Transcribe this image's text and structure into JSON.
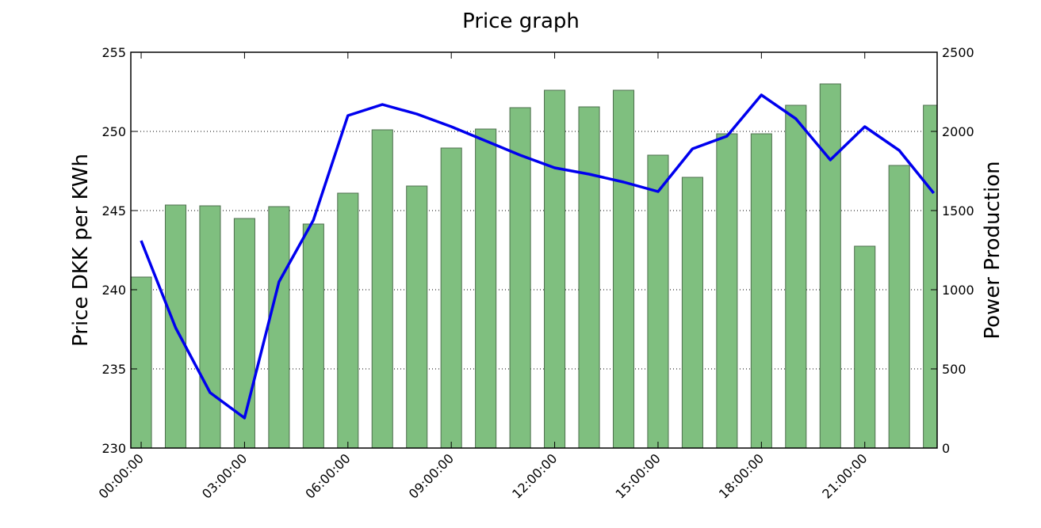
{
  "chart_data": {
    "type": "bar",
    "title": "Price graph",
    "ylabel": "Price DKK per KWh",
    "y2label": "Power Production",
    "ylim": [
      230,
      255
    ],
    "y2lim": [
      0,
      2500
    ],
    "yticks": [
      "230",
      "235",
      "240",
      "245",
      "250",
      "255"
    ],
    "y2ticks": [
      "0",
      "500",
      "1000",
      "1500",
      "2000",
      "2500"
    ],
    "xtick_labels": [
      "00:00:00",
      "03:00:00",
      "06:00:00",
      "09:00:00",
      "12:00:00",
      "15:00:00",
      "18:00:00",
      "21:00:00"
    ],
    "xtick_hours": [
      0,
      3,
      6,
      9,
      12,
      15,
      18,
      21
    ],
    "hours": [
      0,
      1,
      2,
      3,
      4,
      5,
      6,
      7,
      8,
      9,
      10,
      11,
      12,
      13,
      14,
      15,
      16,
      17,
      18,
      19,
      20,
      21,
      22,
      23
    ],
    "grid": "horizontal dotted",
    "series": [
      {
        "type": "bar",
        "axis": "right",
        "color": "#7fbf7f",
        "edge_color": "#4f6f4f",
        "values": [
          1080,
          1535,
          1530,
          1450,
          1525,
          1415,
          1610,
          2010,
          1655,
          1895,
          2015,
          2150,
          2260,
          2155,
          2260,
          1850,
          1710,
          1985,
          1985,
          2165,
          2300,
          1275,
          1785,
          2165
        ]
      },
      {
        "type": "line",
        "axis": "left",
        "color": "#0000ee",
        "values": [
          243.1,
          237.6,
          233.5,
          231.9,
          240.5,
          244.4,
          251.0,
          251.7,
          251.1,
          250.3,
          249.4,
          248.5,
          247.7,
          247.3,
          246.8,
          246.2,
          248.9,
          249.7,
          252.3,
          250.8,
          248.2,
          250.3,
          248.8,
          246.1
        ]
      }
    ]
  }
}
